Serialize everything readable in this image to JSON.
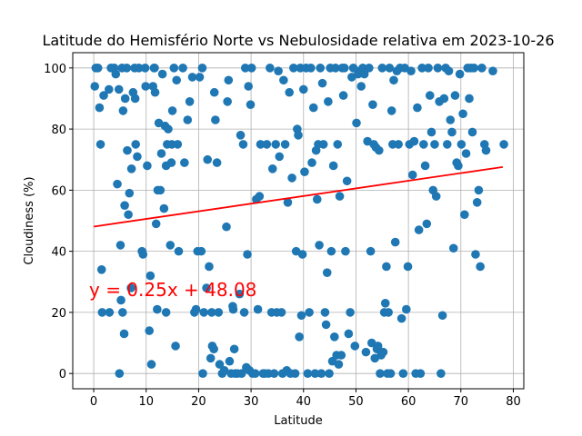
{
  "chart_data": {
    "type": "scatter",
    "title": "Latitude do Hemisfério Norte vs Nebulosidade relativa em 2023-10-26",
    "xlabel": "Latitude",
    "ylabel": "Cloudiness (%)",
    "xlim": [
      -4,
      82
    ],
    "ylim": [
      -5,
      105
    ],
    "xticks": [
      0,
      10,
      20,
      30,
      40,
      50,
      60,
      70,
      80
    ],
    "yticks": [
      0,
      20,
      40,
      60,
      80,
      100
    ],
    "grid": true,
    "marker_color": "#1f77b4",
    "regression": {
      "slope": 0.25,
      "intercept": 48.08,
      "x_range": [
        0,
        78
      ],
      "color": "#ff0000",
      "equation": "y = 0.25x + 48.08"
    },
    "series": [
      {
        "points": [
          [
            0.2,
            94
          ],
          [
            0.4,
            100
          ],
          [
            0.8,
            100
          ],
          [
            1.1,
            87
          ],
          [
            1.3,
            75
          ],
          [
            1.5,
            34
          ],
          [
            1.6,
            20
          ],
          [
            1.9,
            91
          ],
          [
            2.9,
            93
          ],
          [
            3.0,
            20
          ],
          [
            3.3,
            100
          ],
          [
            3.9,
            100
          ],
          [
            4.2,
            98
          ],
          [
            4.5,
            62
          ],
          [
            4.8,
            93
          ],
          [
            4.9,
            0
          ],
          [
            5.1,
            42
          ],
          [
            5.2,
            24
          ],
          [
            5.4,
            100
          ],
          [
            5.5,
            20
          ],
          [
            5.6,
            86
          ],
          [
            5.8,
            13
          ],
          [
            5.9,
            55
          ],
          [
            6.0,
            90
          ],
          [
            6.3,
            100
          ],
          [
            6.4,
            73
          ],
          [
            6.6,
            52
          ],
          [
            6.8,
            59
          ],
          [
            7.1,
            28
          ],
          [
            7.2,
            67
          ],
          [
            7.5,
            92
          ],
          [
            7.8,
            100
          ],
          [
            7.9,
            90
          ],
          [
            8.0,
            75
          ],
          [
            8.3,
            71
          ],
          [
            8.6,
            100
          ],
          [
            9.2,
            40
          ],
          [
            9.4,
            39
          ],
          [
            9.8,
            100
          ],
          [
            9.9,
            94
          ],
          [
            10.2,
            68
          ],
          [
            10.6,
            14
          ],
          [
            10.8,
            32
          ],
          [
            11.0,
            3
          ],
          [
            11.3,
            94
          ],
          [
            11.5,
            100
          ],
          [
            11.6,
            100
          ],
          [
            11.7,
            92
          ],
          [
            11.9,
            49
          ],
          [
            12.1,
            21
          ],
          [
            12.2,
            60
          ],
          [
            12.4,
            82
          ],
          [
            12.7,
            60
          ],
          [
            12.9,
            72
          ],
          [
            13.1,
            98
          ],
          [
            13.4,
            54
          ],
          [
            13.6,
            81
          ],
          [
            13.8,
            20
          ],
          [
            13.8,
            68
          ],
          [
            14.0,
            75
          ],
          [
            14.2,
            80
          ],
          [
            14.6,
            42
          ],
          [
            14.8,
            69
          ],
          [
            14.9,
            75
          ],
          [
            15.0,
            86
          ],
          [
            15.3,
            100
          ],
          [
            15.6,
            9
          ],
          [
            15.8,
            96
          ],
          [
            16.0,
            75
          ],
          [
            16.2,
            40
          ],
          [
            17.0,
            100
          ],
          [
            17.3,
            69
          ],
          [
            17.9,
            83
          ],
          [
            18.3,
            89
          ],
          [
            18.8,
            97
          ],
          [
            19.2,
            20
          ],
          [
            19.5,
            21
          ],
          [
            19.8,
            40
          ],
          [
            20.2,
            97
          ],
          [
            20.5,
            40
          ],
          [
            20.7,
            100
          ],
          [
            20.8,
            0
          ],
          [
            21.0,
            20
          ],
          [
            21.5,
            28
          ],
          [
            21.7,
            70
          ],
          [
            22.0,
            35
          ],
          [
            22.3,
            5
          ],
          [
            22.5,
            20
          ],
          [
            22.6,
            9
          ],
          [
            22.9,
            8
          ],
          [
            23.0,
            92
          ],
          [
            23.2,
            83
          ],
          [
            23.5,
            69
          ],
          [
            23.8,
            20
          ],
          [
            24.0,
            3
          ],
          [
            24.5,
            0
          ],
          [
            24.9,
            1
          ],
          [
            25.3,
            48
          ],
          [
            25.5,
            89
          ],
          [
            25.7,
            96
          ],
          [
            25.9,
            4
          ],
          [
            26.2,
            0
          ],
          [
            26.5,
            22
          ],
          [
            26.6,
            21
          ],
          [
            26.8,
            8
          ],
          [
            27.0,
            0
          ],
          [
            27.4,
            0
          ],
          [
            27.8,
            26
          ],
          [
            28.0,
            78
          ],
          [
            28.2,
            0
          ],
          [
            28.5,
            75
          ],
          [
            28.7,
            20
          ],
          [
            28.9,
            100
          ],
          [
            29.1,
            2
          ],
          [
            29.3,
            39
          ],
          [
            29.5,
            94
          ],
          [
            29.7,
            1
          ],
          [
            29.9,
            88
          ],
          [
            30.1,
            100
          ],
          [
            30.3,
            0
          ],
          [
            30.8,
            0
          ],
          [
            31.0,
            57
          ],
          [
            31.3,
            21
          ],
          [
            31.6,
            58
          ],
          [
            31.8,
            75
          ],
          [
            32.3,
            0
          ],
          [
            32.6,
            0
          ],
          [
            33.0,
            75
          ],
          [
            33.3,
            0
          ],
          [
            33.6,
            100
          ],
          [
            33.9,
            20
          ],
          [
            34.1,
            67
          ],
          [
            34.4,
            0
          ],
          [
            34.7,
            75
          ],
          [
            34.9,
            20
          ],
          [
            35.2,
            99
          ],
          [
            35.4,
            71
          ],
          [
            35.8,
            20
          ],
          [
            36.0,
            0
          ],
          [
            36.2,
            96
          ],
          [
            36.5,
            75
          ],
          [
            36.8,
            1
          ],
          [
            37.0,
            56
          ],
          [
            37.3,
            92
          ],
          [
            37.5,
            0
          ],
          [
            37.8,
            64
          ],
          [
            38.1,
            100
          ],
          [
            38.4,
            0
          ],
          [
            38.6,
            40
          ],
          [
            38.8,
            80
          ],
          [
            39.0,
            78
          ],
          [
            39.2,
            12
          ],
          [
            39.4,
            100
          ],
          [
            39.6,
            19
          ],
          [
            39.8,
            39
          ],
          [
            40.0,
            93
          ],
          [
            40.2,
            66
          ],
          [
            40.5,
            100
          ],
          [
            40.8,
            0
          ],
          [
            41.1,
            20
          ],
          [
            41.4,
            100
          ],
          [
            41.6,
            69
          ],
          [
            41.9,
            87
          ],
          [
            42.2,
            0
          ],
          [
            42.4,
            73
          ],
          [
            42.6,
            57
          ],
          [
            42.8,
            75
          ],
          [
            43.0,
            42
          ],
          [
            43.2,
            100
          ],
          [
            43.4,
            0
          ],
          [
            43.6,
            95
          ],
          [
            43.8,
            75
          ],
          [
            44.1,
            20
          ],
          [
            44.3,
            16
          ],
          [
            44.5,
            33
          ],
          [
            44.7,
            89
          ],
          [
            44.9,
            0
          ],
          [
            45.1,
            100
          ],
          [
            45.3,
            40
          ],
          [
            45.5,
            4
          ],
          [
            45.7,
            68
          ],
          [
            45.9,
            12
          ],
          [
            46.1,
            100
          ],
          [
            46.3,
            6
          ],
          [
            46.5,
            75
          ],
          [
            46.7,
            3
          ],
          [
            46.9,
            58
          ],
          [
            47.2,
            6
          ],
          [
            47.4,
            100
          ],
          [
            47.6,
            91
          ],
          [
            47.8,
            100
          ],
          [
            48.0,
            40
          ],
          [
            48.3,
            63
          ],
          [
            48.6,
            13
          ],
          [
            48.9,
            20
          ],
          [
            49.2,
            97
          ],
          [
            49.5,
            100
          ],
          [
            49.8,
            9
          ],
          [
            50.1,
            82
          ],
          [
            50.4,
            98
          ],
          [
            50.7,
            99
          ],
          [
            51.0,
            94
          ],
          [
            51.3,
            100
          ],
          [
            51.6,
            98
          ],
          [
            51.9,
            7
          ],
          [
            52.2,
            76
          ],
          [
            52.5,
            100
          ],
          [
            52.8,
            40
          ],
          [
            53.0,
            10
          ],
          [
            53.2,
            88
          ],
          [
            53.4,
            75
          ],
          [
            53.6,
            5
          ],
          [
            53.8,
            74
          ],
          [
            54.0,
            8
          ],
          [
            54.2,
            9
          ],
          [
            54.4,
            73
          ],
          [
            54.6,
            0
          ],
          [
            54.8,
            6
          ],
          [
            55.0,
            100
          ],
          [
            55.2,
            7
          ],
          [
            55.4,
            20
          ],
          [
            55.6,
            23
          ],
          [
            55.8,
            35
          ],
          [
            56.0,
            0
          ],
          [
            56.2,
            20
          ],
          [
            56.4,
            100
          ],
          [
            56.6,
            0
          ],
          [
            56.8,
            86
          ],
          [
            57.0,
            75
          ],
          [
            57.2,
            96
          ],
          [
            57.5,
            43
          ],
          [
            57.8,
            99
          ],
          [
            58.1,
            75
          ],
          [
            58.4,
            100
          ],
          [
            58.7,
            18
          ],
          [
            59.0,
            0
          ],
          [
            59.3,
            100
          ],
          [
            59.6,
            21
          ],
          [
            59.9,
            35
          ],
          [
            60.2,
            75
          ],
          [
            60.5,
            99
          ],
          [
            60.8,
            65
          ],
          [
            61.1,
            76
          ],
          [
            61.4,
            0
          ],
          [
            61.7,
            87
          ],
          [
            62.0,
            47
          ],
          [
            62.3,
            0
          ],
          [
            62.6,
            100
          ],
          [
            62.9,
            75
          ],
          [
            63.2,
            68
          ],
          [
            63.5,
            49
          ],
          [
            63.8,
            100
          ],
          [
            64.1,
            91
          ],
          [
            64.4,
            79
          ],
          [
            64.7,
            60
          ],
          [
            65.0,
            75
          ],
          [
            65.3,
            58
          ],
          [
            65.6,
            100
          ],
          [
            65.9,
            89
          ],
          [
            66.2,
            0
          ],
          [
            66.5,
            19
          ],
          [
            66.8,
            90
          ],
          [
            67.1,
            100
          ],
          [
            67.4,
            75
          ],
          [
            67.7,
            99
          ],
          [
            68.0,
            83
          ],
          [
            68.3,
            79
          ],
          [
            68.6,
            41
          ],
          [
            68.9,
            91
          ],
          [
            69.2,
            69
          ],
          [
            69.5,
            68
          ],
          [
            69.8,
            98
          ],
          [
            70.1,
            75
          ],
          [
            70.4,
            85
          ],
          [
            70.7,
            52
          ],
          [
            71.0,
            72
          ],
          [
            71.3,
            100
          ],
          [
            71.6,
            90
          ],
          [
            71.9,
            100
          ],
          [
            72.2,
            79
          ],
          [
            72.5,
            100
          ],
          [
            72.8,
            39
          ],
          [
            73.1,
            56
          ],
          [
            73.4,
            60
          ],
          [
            73.7,
            35
          ],
          [
            74.0,
            100
          ],
          [
            74.5,
            75
          ],
          [
            74.8,
            73
          ],
          [
            76.1,
            99
          ],
          [
            78.2,
            75
          ]
        ]
      }
    ]
  }
}
